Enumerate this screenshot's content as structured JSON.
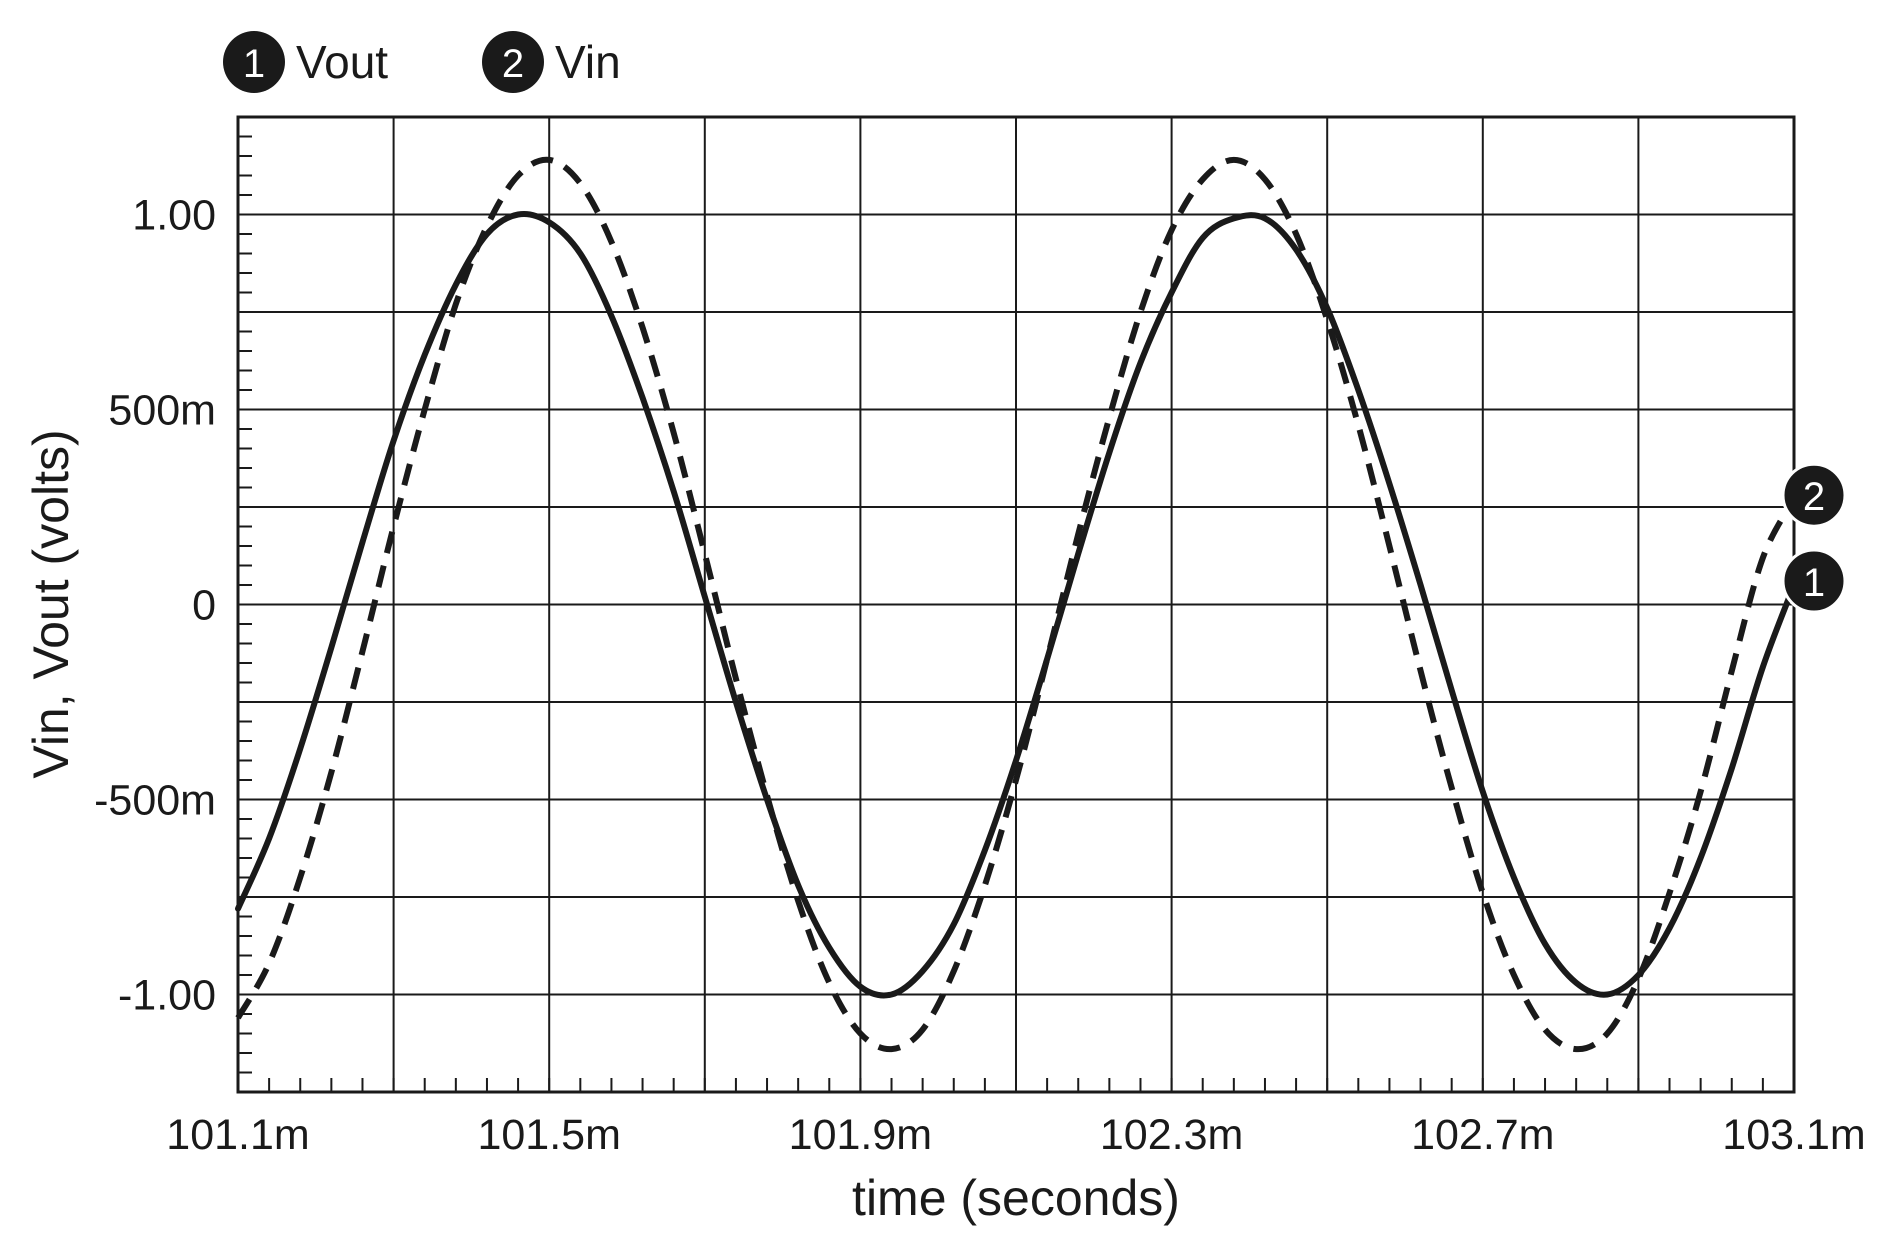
{
  "chart_data": {
    "type": "line",
    "title": "",
    "xlabel": "time (seconds)",
    "ylabel": "Vin, Vout (volts)",
    "xlim": [
      101.1,
      103.1
    ],
    "ylim": [
      -1.25,
      1.25
    ],
    "grid": true,
    "legend_position": "top-left",
    "x_unit_suffix": "m",
    "xticks": [
      {
        "value": 101.1,
        "label": "101.1m"
      },
      {
        "value": 101.5,
        "label": "101.5m"
      },
      {
        "value": 101.9,
        "label": "101.9m"
      },
      {
        "value": 102.3,
        "label": "102.3m"
      },
      {
        "value": 102.7,
        "label": "102.7m"
      },
      {
        "value": 103.1,
        "label": "103.1m"
      }
    ],
    "x_grid_step": 0.2,
    "x_minor_step": 0.04,
    "yticks": [
      {
        "value": 1.0,
        "label": "1.00"
      },
      {
        "value": 0.5,
        "label": "500m"
      },
      {
        "value": 0.0,
        "label": "0"
      },
      {
        "value": -0.5,
        "label": "-500m"
      },
      {
        "value": -1.0,
        "label": "-1.00"
      }
    ],
    "y_grid_step": 0.25,
    "y_minor_step": 0.05,
    "series": [
      {
        "id": "1",
        "name": "Vout",
        "style": "solid",
        "color": "#1a1a1a",
        "x": [
          101.1,
          101.14,
          101.18,
          101.22,
          101.26,
          101.3,
          101.34,
          101.38,
          101.42,
          101.46,
          101.5,
          101.54,
          101.58,
          101.62,
          101.66,
          101.7,
          101.74,
          101.78,
          101.82,
          101.86,
          101.9,
          101.94,
          101.98,
          102.02,
          102.06,
          102.1,
          102.14,
          102.18,
          102.22,
          102.26,
          102.3,
          102.34,
          102.38,
          102.42,
          102.46,
          102.5,
          102.54,
          102.58,
          102.62,
          102.66,
          102.7,
          102.74,
          102.78,
          102.82,
          102.86,
          102.9,
          102.94,
          102.98,
          103.02,
          103.06,
          103.1
        ],
        "values": [
          -0.78,
          -0.6,
          -0.37,
          -0.11,
          0.16,
          0.42,
          0.64,
          0.82,
          0.95,
          1.0,
          0.98,
          0.9,
          0.74,
          0.53,
          0.29,
          0.02,
          -0.25,
          -0.5,
          -0.72,
          -0.88,
          -0.98,
          -1.0,
          -0.94,
          -0.82,
          -0.63,
          -0.4,
          -0.14,
          0.13,
          0.39,
          0.62,
          0.8,
          0.94,
          0.99,
          0.99,
          0.91,
          0.76,
          0.55,
          0.31,
          0.05,
          -0.22,
          -0.48,
          -0.7,
          -0.87,
          -0.97,
          -1.0,
          -0.95,
          -0.83,
          -0.65,
          -0.42,
          -0.16,
          0.05
        ]
      },
      {
        "id": "2",
        "name": "Vin",
        "style": "dashed",
        "color": "#1a1a1a",
        "x": [
          101.1,
          101.14,
          101.18,
          101.22,
          101.26,
          101.3,
          101.34,
          101.38,
          101.42,
          101.46,
          101.5,
          101.54,
          101.58,
          101.62,
          101.66,
          101.7,
          101.74,
          101.78,
          101.82,
          101.86,
          101.9,
          101.94,
          101.98,
          102.02,
          102.06,
          102.1,
          102.14,
          102.18,
          102.22,
          102.26,
          102.3,
          102.34,
          102.38,
          102.42,
          102.46,
          102.5,
          102.54,
          102.58,
          102.62,
          102.66,
          102.7,
          102.74,
          102.78,
          102.82,
          102.86,
          102.9,
          102.94,
          102.98,
          103.02,
          103.06,
          103.1
        ],
        "values": [
          -1.06,
          -0.92,
          -0.7,
          -0.43,
          -0.12,
          0.2,
          0.5,
          0.77,
          0.97,
          1.1,
          1.14,
          1.08,
          0.93,
          0.71,
          0.44,
          0.13,
          -0.19,
          -0.49,
          -0.76,
          -0.97,
          -1.1,
          -1.14,
          -1.09,
          -0.94,
          -0.72,
          -0.45,
          -0.14,
          0.18,
          0.48,
          0.75,
          0.96,
          1.09,
          1.14,
          1.09,
          0.95,
          0.73,
          0.46,
          0.15,
          -0.17,
          -0.47,
          -0.74,
          -0.95,
          -1.09,
          -1.14,
          -1.1,
          -0.96,
          -0.74,
          -0.48,
          -0.17,
          0.12,
          0.27
        ]
      }
    ]
  }
}
